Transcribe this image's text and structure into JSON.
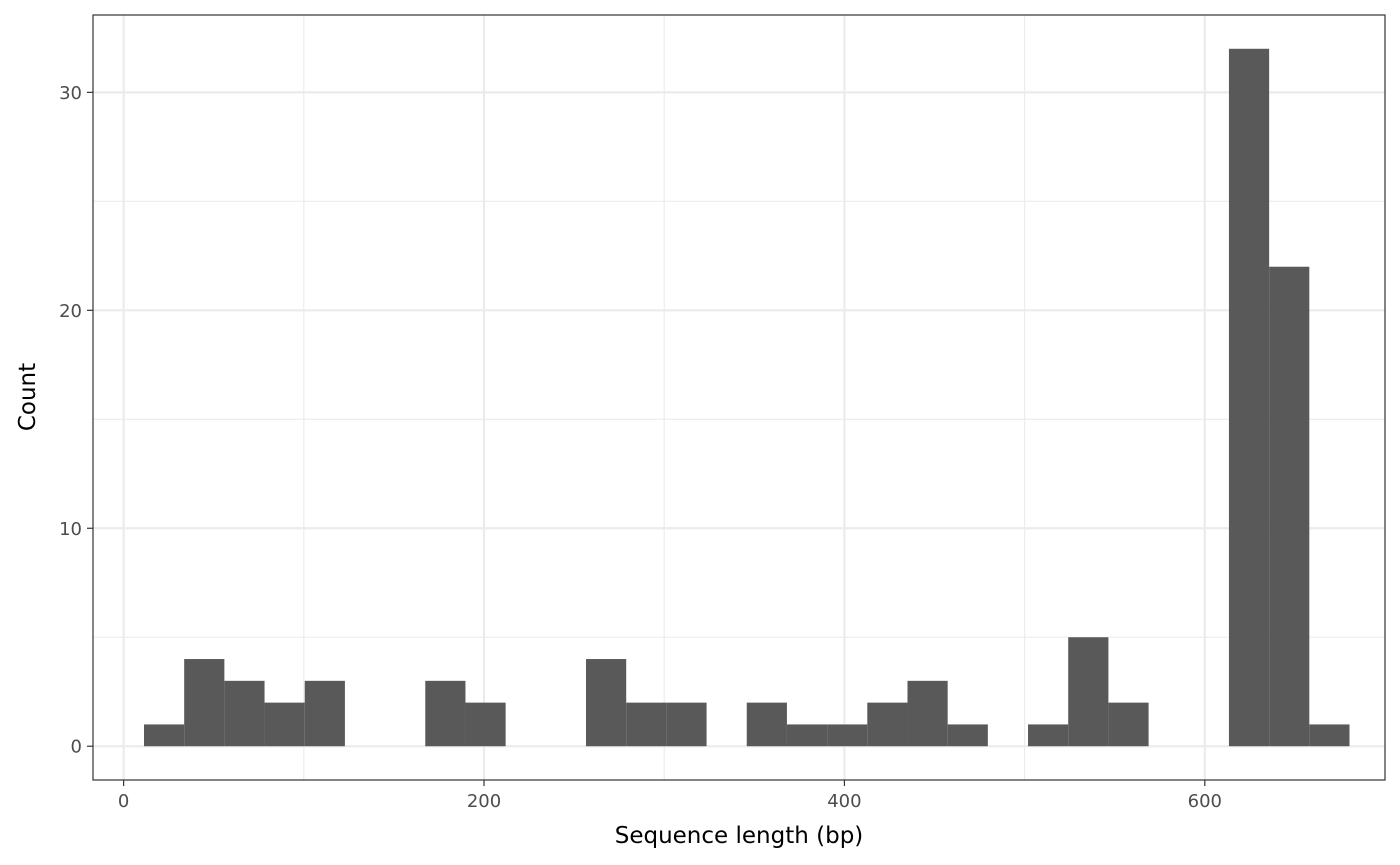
{
  "chart_data": {
    "type": "bar",
    "subtype": "histogram",
    "title": "",
    "xlabel": "Sequence length (bp)",
    "ylabel": "Count",
    "xlim": [
      -17,
      700
    ],
    "ylim": [
      -1.55,
      33.55
    ],
    "x_ticks": [
      0,
      200,
      400,
      600
    ],
    "x_tick_labels": [
      "0",
      "200",
      "400",
      "600"
    ],
    "y_ticks": [
      0,
      10,
      20,
      30
    ],
    "y_tick_labels": [
      "0",
      "10",
      "20",
      "30"
    ],
    "x_minor_ticks": [
      100,
      300,
      500,
      700
    ],
    "y_minor_ticks": [
      5,
      15,
      25
    ],
    "grid": true,
    "bar_color": "#595959",
    "bins": [
      {
        "x0": 11.3,
        "x1": 33.6,
        "count": 1
      },
      {
        "x0": 33.6,
        "x1": 55.9,
        "count": 4
      },
      {
        "x0": 55.9,
        "x1": 78.2,
        "count": 3
      },
      {
        "x0": 78.2,
        "x1": 100.5,
        "count": 2
      },
      {
        "x0": 100.5,
        "x1": 122.8,
        "count": 3
      },
      {
        "x0": 167.4,
        "x1": 189.7,
        "count": 3
      },
      {
        "x0": 189.7,
        "x1": 212.0,
        "count": 2
      },
      {
        "x0": 256.6,
        "x1": 278.9,
        "count": 4
      },
      {
        "x0": 278.9,
        "x1": 301.2,
        "count": 2
      },
      {
        "x0": 301.2,
        "x1": 323.5,
        "count": 2
      },
      {
        "x0": 345.8,
        "x1": 368.1,
        "count": 2
      },
      {
        "x0": 368.1,
        "x1": 390.4,
        "count": 1
      },
      {
        "x0": 390.4,
        "x1": 412.7,
        "count": 1
      },
      {
        "x0": 412.7,
        "x1": 435.0,
        "count": 2
      },
      {
        "x0": 435.0,
        "x1": 457.3,
        "count": 3
      },
      {
        "x0": 457.3,
        "x1": 479.6,
        "count": 1
      },
      {
        "x0": 501.9,
        "x1": 524.2,
        "count": 1
      },
      {
        "x0": 524.2,
        "x1": 546.5,
        "count": 5
      },
      {
        "x0": 546.5,
        "x1": 568.8,
        "count": 2
      },
      {
        "x0": 613.4,
        "x1": 635.7,
        "count": 32
      },
      {
        "x0": 635.7,
        "x1": 658.0,
        "count": 22
      },
      {
        "x0": 658.0,
        "x1": 680.3,
        "count": 1
      }
    ]
  }
}
